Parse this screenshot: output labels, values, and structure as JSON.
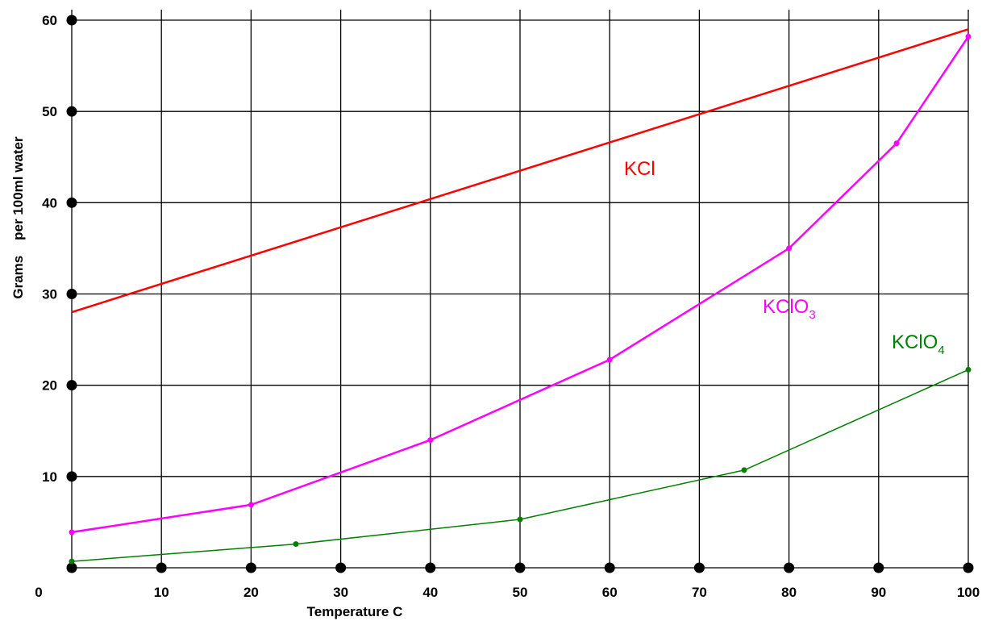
{
  "chart_data": {
    "type": "line",
    "xlabel": "Temperature C",
    "ylabel": "Grams    per 100ml water",
    "xlim": [
      0,
      100
    ],
    "ylim": [
      0,
      60
    ],
    "x_ticks": [
      0,
      10,
      20,
      30,
      40,
      50,
      60,
      70,
      80,
      90,
      100
    ],
    "y_ticks": [
      10,
      20,
      30,
      40,
      50,
      60
    ],
    "origin_label": "0",
    "grid": true,
    "series": [
      {
        "name": "KCl",
        "label_main": "KCl",
        "label_sub": "",
        "color": "#ff0000",
        "x": [
          0,
          100
        ],
        "y": [
          28,
          59
        ],
        "markers": false
      },
      {
        "name": "KClO3",
        "label_main": "KClO",
        "label_sub": "3",
        "color": "#ff00ff",
        "x": [
          0,
          20,
          40,
          60,
          80,
          92,
          100
        ],
        "y": [
          3.9,
          6.9,
          14,
          22.8,
          35,
          46.5,
          58.2
        ],
        "markers": true
      },
      {
        "name": "KClO4",
        "label_main": "KClO",
        "label_sub": "4",
        "color": "#008000",
        "x": [
          0,
          25,
          50,
          75,
          100
        ],
        "y": [
          0.7,
          2.6,
          5.3,
          10.7,
          21.7
        ],
        "markers": true
      }
    ]
  }
}
